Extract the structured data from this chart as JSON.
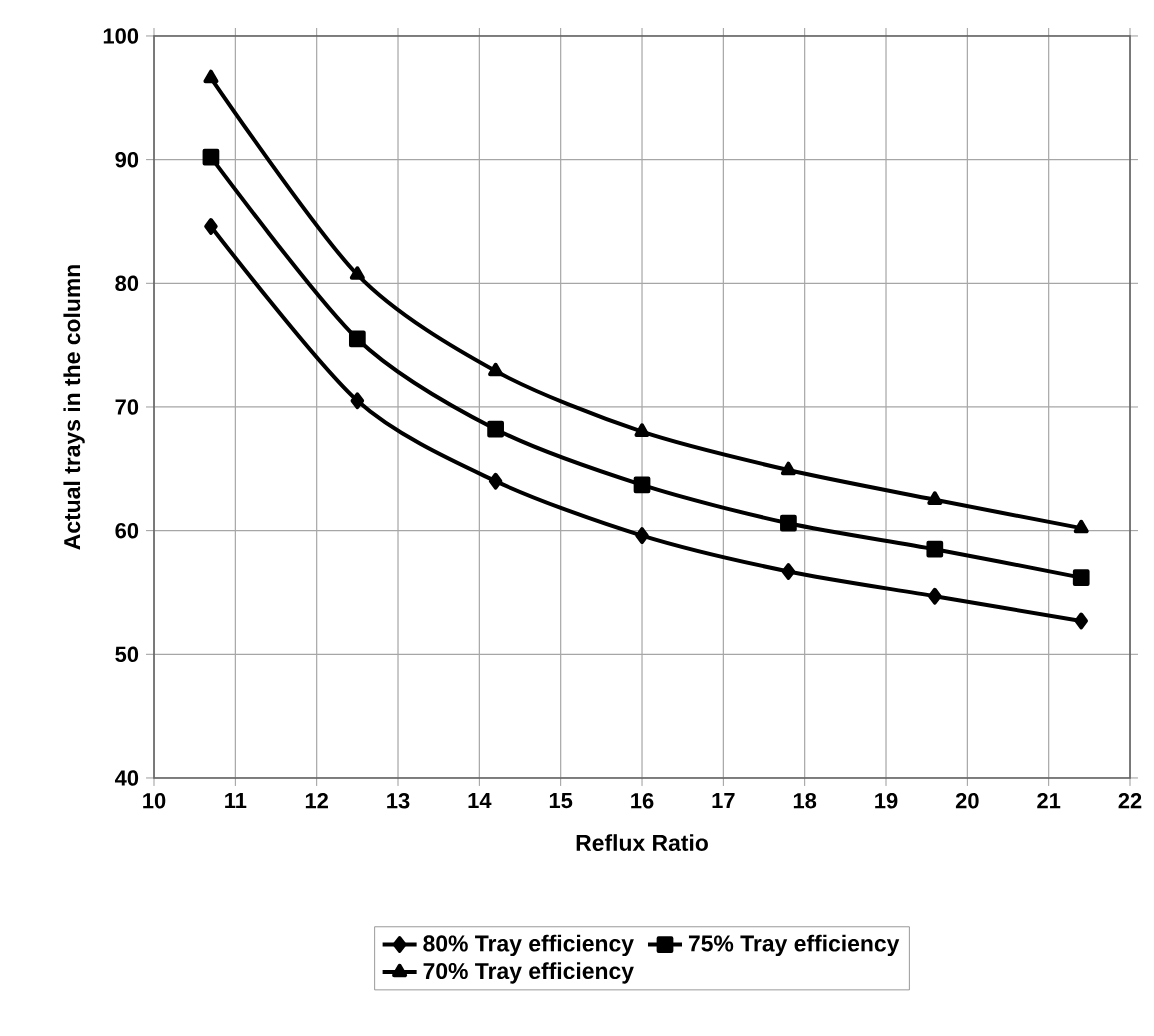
{
  "chart_data": {
    "type": "line",
    "xlabel": "Reflux Ratio",
    "ylabel": "Actual trays in the column",
    "x": [
      10.7,
      12.5,
      14.2,
      16.0,
      17.8,
      19.6,
      21.4
    ],
    "series": [
      {
        "name": "80% Tray efficiency",
        "color": "#000000",
        "marker": "diamond",
        "values": [
          84.6,
          70.5,
          64.0,
          59.6,
          56.7,
          54.7,
          52.7
        ]
      },
      {
        "name": "75% Tray efficiency",
        "color": "#000000",
        "marker": "square",
        "values": [
          90.2,
          75.5,
          68.2,
          63.7,
          60.6,
          58.5,
          56.2
        ]
      },
      {
        "name": "70% Tray efficiency",
        "color": "#000000",
        "marker": "triangle",
        "values": [
          96.6,
          80.7,
          72.9,
          68.0,
          64.9,
          62.5,
          60.2
        ]
      }
    ],
    "xlim": [
      10,
      22
    ],
    "xticks": [
      10,
      11,
      12,
      13,
      14,
      15,
      16,
      17,
      18,
      19,
      20,
      21,
      22
    ],
    "ylim": [
      40,
      100
    ],
    "yticks": [
      40,
      50,
      60,
      70,
      80,
      90,
      100
    ],
    "grid": true,
    "legend": "bottom",
    "line_style": "solid"
  }
}
